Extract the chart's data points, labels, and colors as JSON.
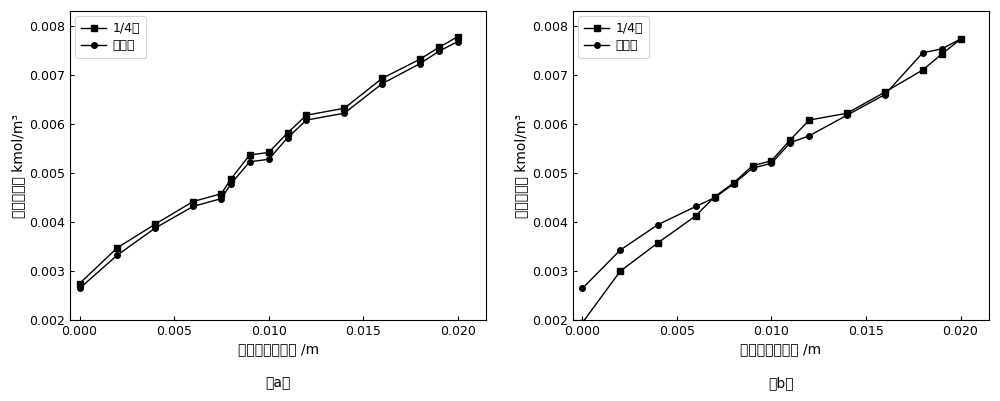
{
  "plot_a": {
    "quarter_circle": {
      "x": [
        0.0,
        0.002,
        0.004,
        0.006,
        0.0075,
        0.008,
        0.009,
        0.01,
        0.011,
        0.012,
        0.014,
        0.016,
        0.018,
        0.019,
        0.02
      ],
      "y": [
        0.00275,
        0.00348,
        0.00396,
        0.00442,
        0.00458,
        0.00488,
        0.00537,
        0.00542,
        0.00582,
        0.00618,
        0.00632,
        0.00693,
        0.00732,
        0.00756,
        0.00778
      ]
    },
    "straight": {
      "x": [
        0.0,
        0.002,
        0.004,
        0.006,
        0.0075,
        0.008,
        0.009,
        0.01,
        0.011,
        0.012,
        0.014,
        0.016,
        0.018,
        0.019,
        0.02
      ],
      "y": [
        0.00265,
        0.00333,
        0.00388,
        0.00432,
        0.00448,
        0.00478,
        0.00523,
        0.00528,
        0.00572,
        0.00608,
        0.00622,
        0.00682,
        0.00723,
        0.00748,
        0.00768
      ]
    },
    "xlabel": "平行于流道方向 /m",
    "ylabel": "水摩尔浓度 kmol/m³",
    "sublabel": "（a）",
    "xlim": [
      -0.0005,
      0.0215
    ],
    "ylim": [
      0.002,
      0.0083
    ],
    "xticks": [
      0.0,
      0.005,
      0.01,
      0.015,
      0.02
    ],
    "yticks": [
      0.002,
      0.003,
      0.004,
      0.005,
      0.006,
      0.007,
      0.008
    ]
  },
  "plot_b": {
    "quarter_circle": {
      "x": [
        0.0,
        0.002,
        0.004,
        0.006,
        0.007,
        0.008,
        0.009,
        0.01,
        0.011,
        0.012,
        0.014,
        0.016,
        0.018,
        0.019,
        0.02
      ],
      "y": [
        0.00195,
        0.003,
        0.00358,
        0.00413,
        0.00452,
        0.0048,
        0.00515,
        0.00525,
        0.00568,
        0.00608,
        0.00622,
        0.00665,
        0.0071,
        0.00742,
        0.00773
      ]
    },
    "straight": {
      "x": [
        0.0,
        0.002,
        0.004,
        0.006,
        0.007,
        0.008,
        0.009,
        0.01,
        0.011,
        0.012,
        0.014,
        0.016,
        0.018,
        0.019,
        0.02
      ],
      "y": [
        0.00265,
        0.00343,
        0.00395,
        0.00432,
        0.0045,
        0.00478,
        0.0051,
        0.0052,
        0.00562,
        0.00576,
        0.00618,
        0.0066,
        0.00745,
        0.00753,
        0.00773
      ]
    },
    "xlabel": "平行于流道方向 /m",
    "ylabel": "水摩尔浓度 kmol/m³",
    "sublabel": "（b）",
    "xlim": [
      -0.0005,
      0.0215
    ],
    "ylim": [
      0.002,
      0.0083
    ],
    "xticks": [
      0.0,
      0.005,
      0.01,
      0.015,
      0.02
    ],
    "yticks": [
      0.002,
      0.003,
      0.004,
      0.005,
      0.006,
      0.007,
      0.008
    ]
  },
  "legend_labels": [
    "1/4圆",
    "直流道"
  ],
  "color": "#000000",
  "linewidth": 1.0,
  "marker_square": "s",
  "marker_circle": "o",
  "markersize": 4.0,
  "background_color": "#ffffff",
  "font_size": 10,
  "tick_font_size": 9
}
